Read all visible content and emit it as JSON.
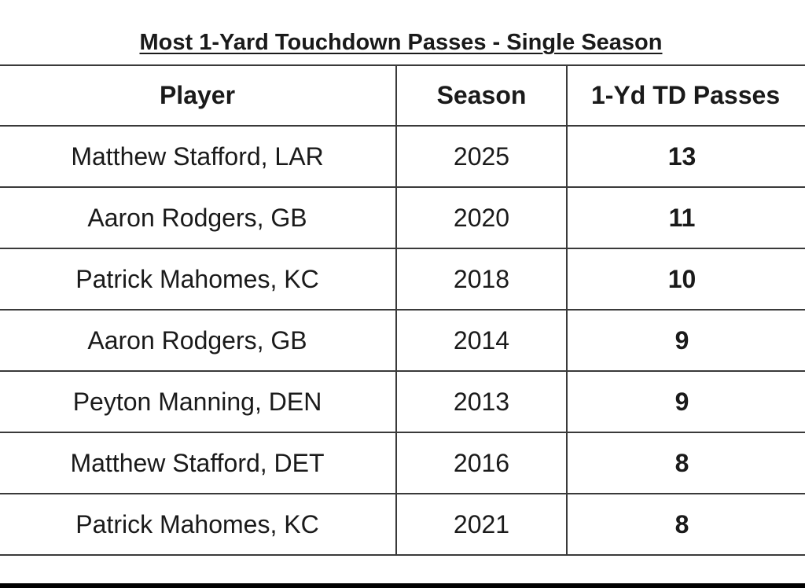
{
  "chart_data": {
    "type": "table",
    "title": "Most 1-Yard Touchdown Passes - Single Season",
    "columns": [
      "Player",
      "Season",
      "1-Yd TD Passes"
    ],
    "rows": [
      {
        "player": "Matthew Stafford, LAR",
        "season": "2025",
        "passes": "13"
      },
      {
        "player": "Aaron Rodgers, GB",
        "season": "2020",
        "passes": "11"
      },
      {
        "player": "Patrick Mahomes, KC",
        "season": "2018",
        "passes": "10"
      },
      {
        "player": "Aaron Rodgers, GB",
        "season": "2014",
        "passes": "9"
      },
      {
        "player": "Peyton Manning, DEN",
        "season": "2013",
        "passes": "9"
      },
      {
        "player": "Matthew Stafford, DET",
        "season": "2016",
        "passes": "8"
      },
      {
        "player": "Patrick Mahomes, KC",
        "season": "2021",
        "passes": "8"
      }
    ]
  }
}
